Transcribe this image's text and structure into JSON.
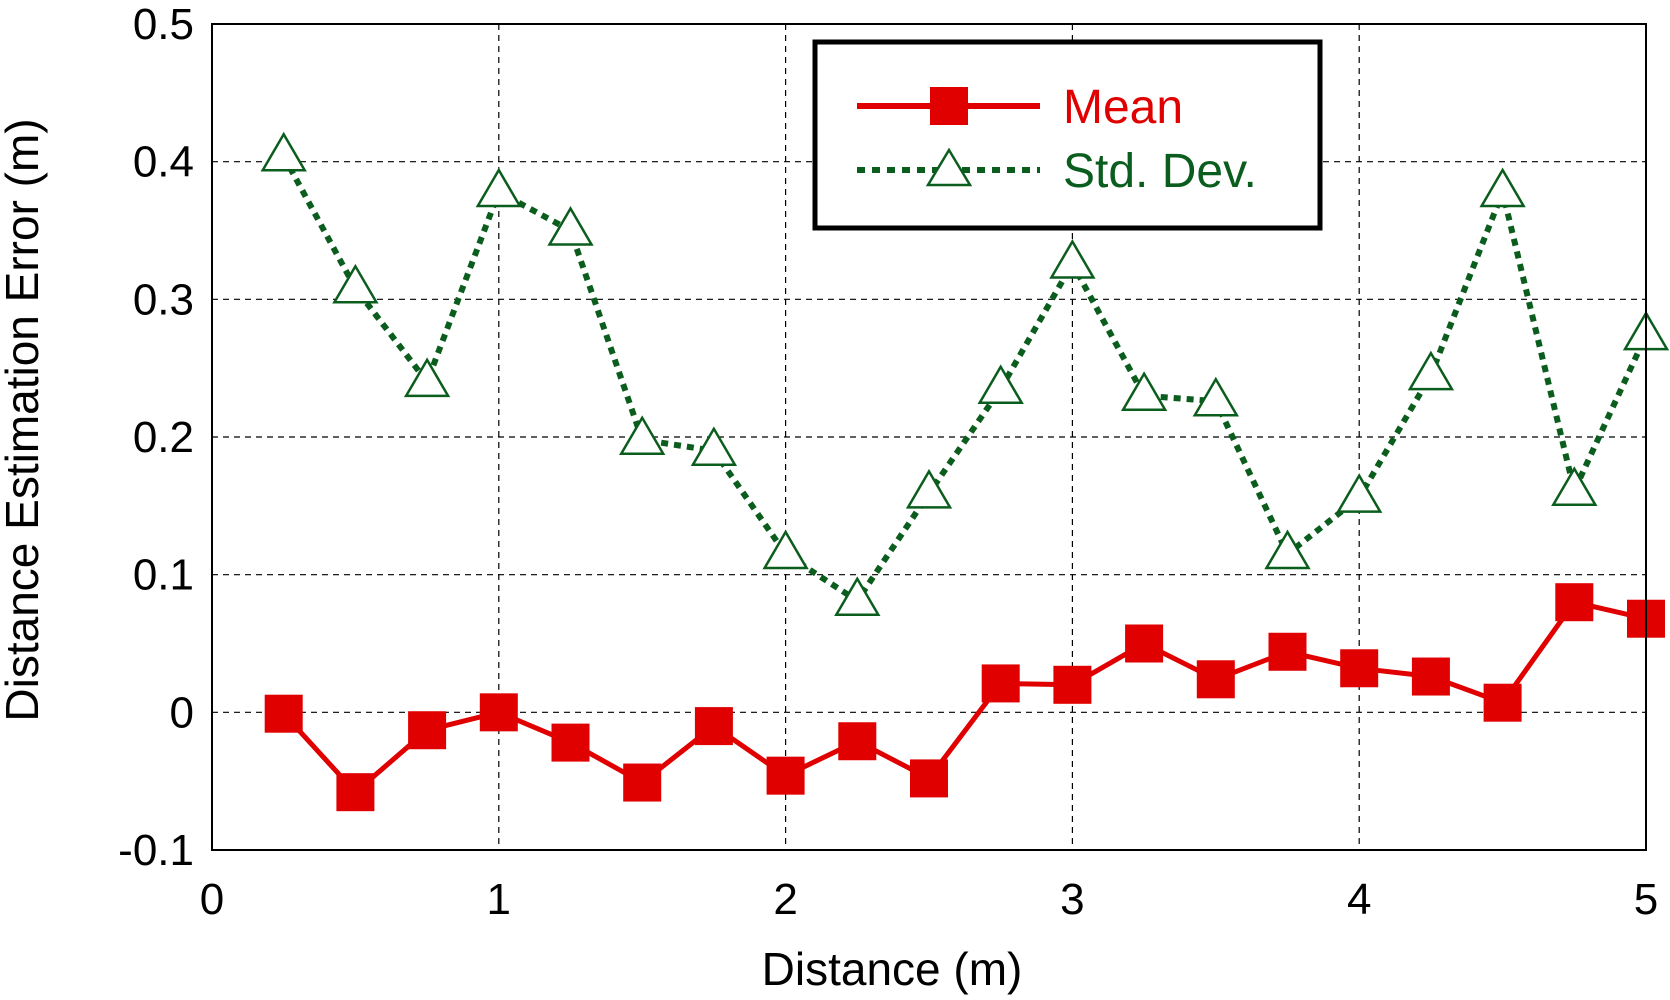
{
  "chart_data": {
    "type": "line",
    "title": "",
    "xlabel": "Distance (m)",
    "ylabel": "Distance Estimation Error (m)",
    "xlim": [
      0,
      5
    ],
    "ylim": [
      -0.1,
      0.5
    ],
    "xticks": [
      0,
      1,
      2,
      3,
      4,
      5
    ],
    "yticks": [
      -0.1,
      0,
      0.1,
      0.2,
      0.3,
      0.4,
      0.5
    ],
    "xtick_labels": [
      "0",
      "1",
      "2",
      "3",
      "4",
      "5"
    ],
    "ytick_labels": [
      "-0.1",
      "0",
      "0.1",
      "0.2",
      "0.3",
      "0.4",
      "0.5"
    ],
    "grid": true,
    "legend_position": "top-right",
    "x": [
      0.25,
      0.5,
      0.75,
      1.0,
      1.25,
      1.5,
      1.75,
      2.0,
      2.25,
      2.5,
      2.75,
      3.0,
      3.25,
      3.5,
      3.75,
      4.0,
      4.25,
      4.5,
      4.75,
      5.0
    ],
    "series": [
      {
        "name": "Mean",
        "color": "#e00000",
        "marker": "square",
        "line_style": "solid",
        "values": [
          -0.001,
          -0.058,
          -0.013,
          0.0,
          -0.022,
          -0.051,
          -0.01,
          -0.046,
          -0.021,
          -0.048,
          0.021,
          0.02,
          0.05,
          0.024,
          0.044,
          0.032,
          0.026,
          0.007,
          0.08,
          0.068
        ]
      },
      {
        "name": "Std. Dev.",
        "color": "#0b5d1e",
        "marker": "triangle-open",
        "line_style": "dotted",
        "values": [
          0.404,
          0.308,
          0.24,
          0.378,
          0.35,
          0.198,
          0.19,
          0.115,
          0.081,
          0.159,
          0.235,
          0.326,
          0.23,
          0.226,
          0.115,
          0.156,
          0.245,
          0.378,
          0.161,
          0.274
        ]
      }
    ]
  }
}
